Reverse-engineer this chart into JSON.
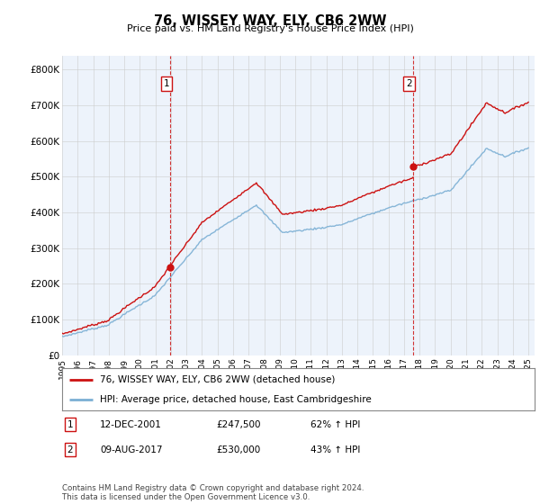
{
  "title": "76, WISSEY WAY, ELY, CB6 2WW",
  "subtitle": "Price paid vs. HM Land Registry's House Price Index (HPI)",
  "ylim": [
    0,
    840000
  ],
  "yticks": [
    0,
    100000,
    200000,
    300000,
    400000,
    500000,
    600000,
    700000,
    800000
  ],
  "ytick_labels": [
    "£0",
    "£100K",
    "£200K",
    "£300K",
    "£400K",
    "£500K",
    "£600K",
    "£700K",
    "£800K"
  ],
  "hpi_color": "#7bafd4",
  "price_color": "#cc1111",
  "vline_color": "#cc1111",
  "bg_plot": "#edf3fb",
  "bg_outside": "#f5f5f5",
  "sale1_t": 2001.958,
  "sale1_price": 247500,
  "sale2_t": 2017.583,
  "sale2_price": 530000,
  "sale1_date": "12-DEC-2001",
  "sale1_price_str": "£247,500",
  "sale1_hpi": "62% ↑ HPI",
  "sale2_date": "09-AUG-2017",
  "sale2_price_str": "£530,000",
  "sale2_hpi": "43% ↑ HPI",
  "legend_line1": "76, WISSEY WAY, ELY, CB6 2WW (detached house)",
  "legend_line2": "HPI: Average price, detached house, East Cambridgeshire",
  "footer": "Contains HM Land Registry data © Crown copyright and database right 2024.\nThis data is licensed under the Open Government Licence v3.0.",
  "grid_color": "#cccccc",
  "ann_box_color": "#cc1111"
}
